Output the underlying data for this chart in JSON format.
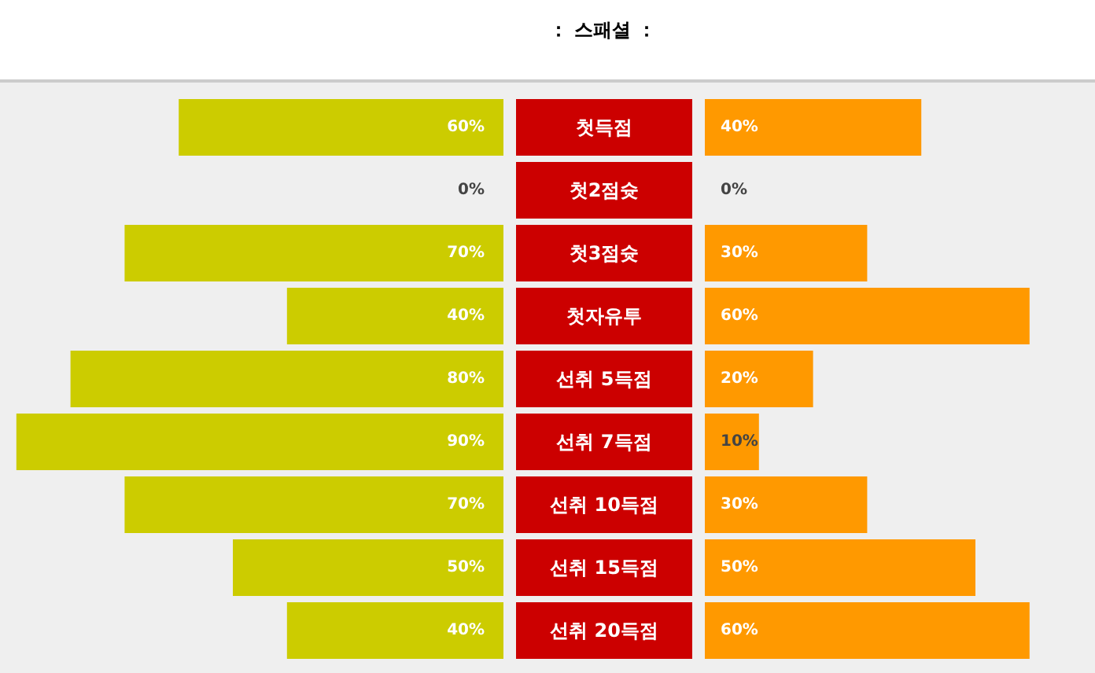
{
  "chart_data": [
    {
      "type": "bar",
      "orientation": "horizontal",
      "title": "： 스패셜 ：",
      "categories": [
        "첫득점",
        "첫2점슛",
        "첫3점슛",
        "첫자유투",
        "선취 5득점",
        "선취 7득점",
        "선취 10득점",
        "선취 15득점",
        "선취 20득점"
      ],
      "series": [
        {
          "color": "#cccc00",
          "values": [
            60,
            0,
            70,
            40,
            80,
            90,
            70,
            50,
            40
          ],
          "value_labels": [
            "60%",
            "0%",
            "70%",
            "40%",
            "80%",
            "90%",
            "70%",
            "50%",
            "40%"
          ]
        }
      ]
    },
    {
      "type": "bar",
      "orientation": "horizontal",
      "categories": [
        null,
        null,
        null,
        null,
        null,
        null,
        null,
        null,
        null
      ],
      "series": [
        {
          "color": "#ff9900",
          "values": [
            40,
            0,
            30,
            60,
            20,
            10,
            30,
            50,
            60
          ],
          "value_labels": [
            "40%",
            "0%",
            "30%",
            "60%",
            "20%",
            "10%",
            "30%",
            "50%",
            "60%"
          ]
        }
      ]
    }
  ]
}
